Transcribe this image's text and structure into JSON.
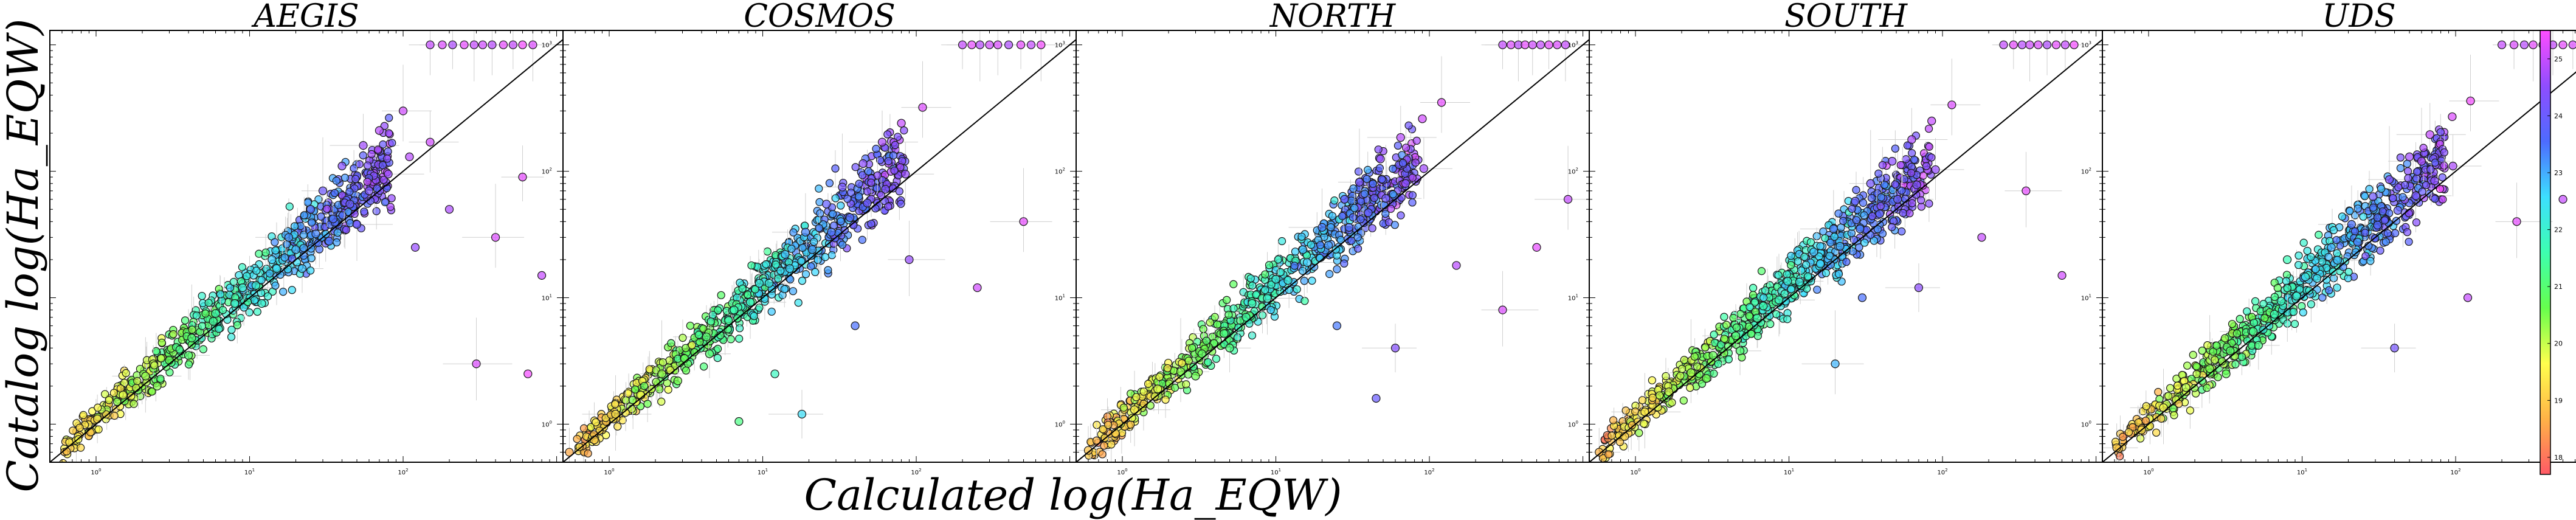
{
  "chart_data": {
    "type": "scatter",
    "title": "",
    "xlabel": "Calculated log(Ha_EQW)",
    "ylabel": "Catalog log(Ha_EQW)",
    "xscale": "log",
    "yscale": "log",
    "xlim": [
      0.5,
      1100
    ],
    "ylim": [
      0.5,
      1300
    ],
    "xticks": [
      {
        "base": "10",
        "exp": "0",
        "value": 1
      },
      {
        "base": "10",
        "exp": "1",
        "value": 10
      },
      {
        "base": "10",
        "exp": "2",
        "value": 100
      }
    ],
    "yticks": [
      {
        "base": "10",
        "exp": "0",
        "value": 1
      },
      {
        "base": "10",
        "exp": "1",
        "value": 10
      },
      {
        "base": "10",
        "exp": "2",
        "value": 100
      },
      {
        "base": "10",
        "exp": "3",
        "value": 1000
      }
    ],
    "grid": false,
    "reference_line": "y = x",
    "colormap": "gist_rainbow",
    "colorbar": {
      "range": [
        17.7,
        25.5
      ],
      "ticks": [
        "18",
        "19",
        "20",
        "21",
        "22",
        "23",
        "24",
        "25"
      ],
      "colors": [
        "#ff5a66",
        "#ffb347",
        "#ffff4d",
        "#66ff4d",
        "#3dffb0",
        "#3ddfff",
        "#4d6bff",
        "#8f4dff",
        "#ff4dff"
      ]
    },
    "panels": [
      {
        "name": "AEGIS",
        "points": [
          [
            1.02,
            1.1,
            19.2
          ],
          [
            1.5,
            1.7,
            19.8
          ],
          [
            2.1,
            2.4,
            20.3
          ],
          [
            3,
            3.2,
            20.7
          ],
          [
            4.2,
            4.8,
            21
          ],
          [
            5.8,
            6.5,
            21.4
          ],
          [
            8,
            9,
            21.8
          ],
          [
            11,
            12.5,
            22.1
          ],
          [
            15,
            17,
            22.5
          ],
          [
            20,
            24,
            22.9
          ],
          [
            27,
            32,
            23.3
          ],
          [
            35,
            42,
            23.6
          ],
          [
            45,
            55,
            24
          ],
          [
            60,
            70,
            24.3
          ],
          [
            80,
            95,
            24.6
          ],
          [
            110,
            130,
            24.9
          ],
          [
            150,
            170,
            25.1
          ],
          [
            2.5,
            2,
            20.4
          ],
          [
            4,
            3.5,
            21
          ],
          [
            6,
            7.5,
            21.5
          ],
          [
            9,
            12,
            22
          ],
          [
            14,
            20,
            22.7
          ],
          [
            18,
            30,
            23.2
          ],
          [
            25,
            50,
            23.8
          ],
          [
            30,
            70,
            24.1
          ],
          [
            40,
            110,
            24.4
          ],
          [
            55,
            160,
            24.7
          ],
          [
            70,
            210,
            24.9
          ],
          [
            100,
            300,
            25.1
          ],
          [
            12,
            9,
            22
          ],
          [
            22,
            17,
            22.8
          ],
          [
            33,
            28,
            23.4
          ],
          [
            50,
            38,
            23.9
          ],
          [
            200,
            50,
            24.8
          ],
          [
            400,
            30,
            25.2
          ],
          [
            120,
            25,
            24.6
          ],
          [
            600,
            90,
            25.3
          ],
          [
            800,
            15,
            25
          ],
          [
            300,
            3,
            25.2
          ],
          [
            650,
            2.5,
            25.4
          ],
          [
            150,
            1000,
            25
          ],
          [
            180,
            1000,
            25.2
          ],
          [
            210,
            1000,
            24.8
          ],
          [
            250,
            1000,
            25.3
          ],
          [
            290,
            1000,
            25
          ],
          [
            330,
            1000,
            25.1
          ],
          [
            380,
            1000,
            24.9
          ],
          [
            450,
            1000,
            25.3
          ],
          [
            520,
            1000,
            25
          ],
          [
            600,
            1000,
            25.4
          ],
          [
            700,
            1000,
            25.2
          ]
        ]
      },
      {
        "name": "COSMOS",
        "points": [
          [
            0.55,
            0.6,
            18.6
          ],
          [
            0.8,
            0.75,
            19
          ],
          [
            1.1,
            1.2,
            19.3
          ],
          [
            1.6,
            1.7,
            19.8
          ],
          [
            2.2,
            2.5,
            20.3
          ],
          [
            3.1,
            3.3,
            20.7
          ],
          [
            4.3,
            4.9,
            21
          ],
          [
            6,
            6.6,
            21.4
          ],
          [
            8.3,
            9.2,
            21.8
          ],
          [
            11,
            13,
            22.2
          ],
          [
            15,
            17,
            22.6
          ],
          [
            21,
            24,
            23
          ],
          [
            28,
            33,
            23.4
          ],
          [
            37,
            43,
            23.7
          ],
          [
            48,
            56,
            24
          ],
          [
            63,
            72,
            24.3
          ],
          [
            85,
            95,
            24.6
          ],
          [
            2.8,
            2.2,
            20.5
          ],
          [
            4.5,
            3.6,
            21
          ],
          [
            6.5,
            8,
            21.6
          ],
          [
            9.5,
            13,
            22.1
          ],
          [
            14,
            22,
            22.8
          ],
          [
            19,
            33,
            23.3
          ],
          [
            26,
            55,
            23.9
          ],
          [
            33,
            75,
            24.2
          ],
          [
            45,
            115,
            24.5
          ],
          [
            60,
            170,
            24.8
          ],
          [
            80,
            240,
            25
          ],
          [
            110,
            320,
            25.2
          ],
          [
            12,
            2.5,
            21.8
          ],
          [
            18,
            1.2,
            22.5
          ],
          [
            40,
            6,
            23.5
          ],
          [
            90,
            20,
            24.6
          ],
          [
            250,
            12,
            25.1
          ],
          [
            500,
            40,
            25.3
          ],
          [
            7,
            1.05,
            21.2
          ],
          [
            200,
            1000,
            25
          ],
          [
            230,
            1000,
            25.3
          ],
          [
            260,
            1000,
            24.9
          ],
          [
            300,
            1000,
            25.1
          ],
          [
            340,
            1000,
            25.2
          ],
          [
            400,
            1000,
            24.8
          ],
          [
            480,
            1000,
            25.3
          ],
          [
            560,
            1000,
            25
          ],
          [
            650,
            1000,
            25.4
          ]
        ]
      },
      {
        "name": "NORTH",
        "points": [
          [
            0.6,
            0.62,
            18.9
          ],
          [
            0.9,
            0.85,
            19.2
          ],
          [
            1.2,
            1.3,
            19.5
          ],
          [
            1.7,
            1.9,
            19.9
          ],
          [
            2.4,
            2.6,
            20.4
          ],
          [
            3.3,
            3.6,
            20.8
          ],
          [
            4.6,
            5.2,
            21.1
          ],
          [
            6.4,
            7,
            21.5
          ],
          [
            8.8,
            9.9,
            21.9
          ],
          [
            12,
            13.7,
            22.3
          ],
          [
            16,
            19,
            22.7
          ],
          [
            22,
            26,
            23.1
          ],
          [
            30,
            36,
            23.5
          ],
          [
            40,
            47,
            23.8
          ],
          [
            52,
            61,
            24.1
          ],
          [
            70,
            80,
            24.4
          ],
          [
            92,
            105,
            24.7
          ],
          [
            3,
            2.4,
            20.6
          ],
          [
            5,
            4,
            21.1
          ],
          [
            7,
            9,
            21.7
          ],
          [
            10,
            14,
            22.2
          ],
          [
            15,
            24,
            22.9
          ],
          [
            20,
            36,
            23.4
          ],
          [
            28,
            60,
            24
          ],
          [
            35,
            82,
            24.3
          ],
          [
            48,
            125,
            24.6
          ],
          [
            65,
            185,
            24.9
          ],
          [
            90,
            260,
            25.1
          ],
          [
            120,
            350,
            25.3
          ],
          [
            25,
            6,
            23.4
          ],
          [
            60,
            4,
            24.4
          ],
          [
            150,
            18,
            24.9
          ],
          [
            300,
            8,
            25.2
          ],
          [
            500,
            25,
            25.3
          ],
          [
            800,
            60,
            25
          ],
          [
            45,
            1.6,
            24
          ],
          [
            300,
            1000,
            25
          ],
          [
            340,
            1000,
            25.2
          ],
          [
            380,
            1000,
            24.9
          ],
          [
            420,
            1000,
            25.3
          ],
          [
            470,
            1000,
            25.1
          ],
          [
            530,
            1000,
            25
          ],
          [
            600,
            1000,
            25.3
          ],
          [
            680,
            1000,
            25.2
          ],
          [
            770,
            1000,
            25
          ]
        ]
      },
      {
        "name": "SOUTH",
        "points": [
          [
            0.58,
            0.6,
            18.7
          ],
          [
            0.85,
            0.8,
            19.1
          ],
          [
            1.15,
            1.25,
            19.4
          ],
          [
            1.65,
            1.8,
            19.9
          ],
          [
            2.3,
            2.55,
            20.3
          ],
          [
            3.2,
            3.5,
            20.7
          ],
          [
            4.5,
            5,
            21
          ],
          [
            6.2,
            6.9,
            21.4
          ],
          [
            8.6,
            9.6,
            21.8
          ],
          [
            11.7,
            13.3,
            22.2
          ],
          [
            16,
            18.5,
            22.6
          ],
          [
            21.5,
            25.5,
            23
          ],
          [
            29,
            35,
            23.4
          ],
          [
            39,
            46,
            23.7
          ],
          [
            51,
            60,
            24
          ],
          [
            68,
            78,
            24.3
          ],
          [
            90,
            103,
            24.6
          ],
          [
            2.9,
            2.3,
            20.5
          ],
          [
            4.8,
            3.8,
            21
          ],
          [
            6.8,
            8.6,
            21.6
          ],
          [
            9.8,
            13.5,
            22.1
          ],
          [
            14.5,
            23,
            22.8
          ],
          [
            19.5,
            35,
            23.3
          ],
          [
            27,
            58,
            23.9
          ],
          [
            34,
            80,
            24.2
          ],
          [
            47,
            120,
            24.5
          ],
          [
            63,
            178,
            24.8
          ],
          [
            85,
            250,
            25
          ],
          [
            115,
            335,
            25.2
          ],
          [
            30,
            10,
            23.5
          ],
          [
            70,
            12,
            24.5
          ],
          [
            180,
            30,
            25
          ],
          [
            350,
            70,
            25.3
          ],
          [
            600,
            15,
            25.1
          ],
          [
            20,
            3,
            22.9
          ],
          [
            250,
            1000,
            25
          ],
          [
            290,
            1000,
            25.3
          ],
          [
            330,
            1000,
            24.9
          ],
          [
            370,
            1000,
            25.1
          ],
          [
            420,
            1000,
            25.2
          ],
          [
            480,
            1000,
            24.8
          ],
          [
            550,
            1000,
            25.3
          ],
          [
            630,
            1000,
            25
          ],
          [
            720,
            1000,
            25.4
          ]
        ]
      },
      {
        "name": "UDS",
        "points": [
          [
            0.62,
            0.65,
            19
          ],
          [
            0.9,
            0.9,
            19.3
          ],
          [
            1.25,
            1.35,
            19.7
          ],
          [
            1.75,
            1.95,
            20.1
          ],
          [
            2.5,
            2.75,
            20.5
          ],
          [
            3.4,
            3.8,
            20.9
          ],
          [
            4.8,
            5.4,
            21.2
          ],
          [
            6.6,
            7.4,
            21.6
          ],
          [
            9.2,
            10.3,
            22
          ],
          [
            12.5,
            14.2,
            22.4
          ],
          [
            17,
            19.8,
            22.8
          ],
          [
            23,
            27.5,
            23.2
          ],
          [
            31,
            37.5,
            23.6
          ],
          [
            42,
            49,
            23.9
          ],
          [
            55,
            64,
            24.2
          ],
          [
            73,
            84,
            24.5
          ],
          [
            96,
            110,
            24.8
          ],
          [
            3.2,
            2.5,
            20.7
          ],
          [
            5.2,
            4.2,
            21.2
          ],
          [
            7.3,
            9.4,
            21.8
          ],
          [
            10.5,
            14.6,
            22.3
          ],
          [
            15.5,
            25,
            23
          ],
          [
            21,
            38,
            23.5
          ],
          [
            29,
            63,
            24.1
          ],
          [
            37,
            86,
            24.4
          ],
          [
            50,
            130,
            24.7
          ],
          [
            68,
            195,
            25
          ],
          [
            95,
            270,
            25.2
          ],
          [
            125,
            360,
            25.4
          ],
          [
            8,
            20,
            21.7
          ],
          [
            40,
            4,
            24.2
          ],
          [
            120,
            10,
            25
          ],
          [
            250,
            40,
            25.3
          ],
          [
            500,
            60,
            25
          ],
          [
            60,
            120,
            24.8
          ],
          [
            200,
            1000,
            25
          ],
          [
            240,
            1000,
            25.2
          ],
          [
            280,
            1000,
            24.9
          ],
          [
            320,
            1000,
            25.3
          ],
          [
            370,
            1000,
            25.1
          ],
          [
            430,
            1000,
            25
          ],
          [
            500,
            1000,
            25.3
          ],
          [
            580,
            1000,
            25.2
          ]
        ]
      }
    ]
  }
}
